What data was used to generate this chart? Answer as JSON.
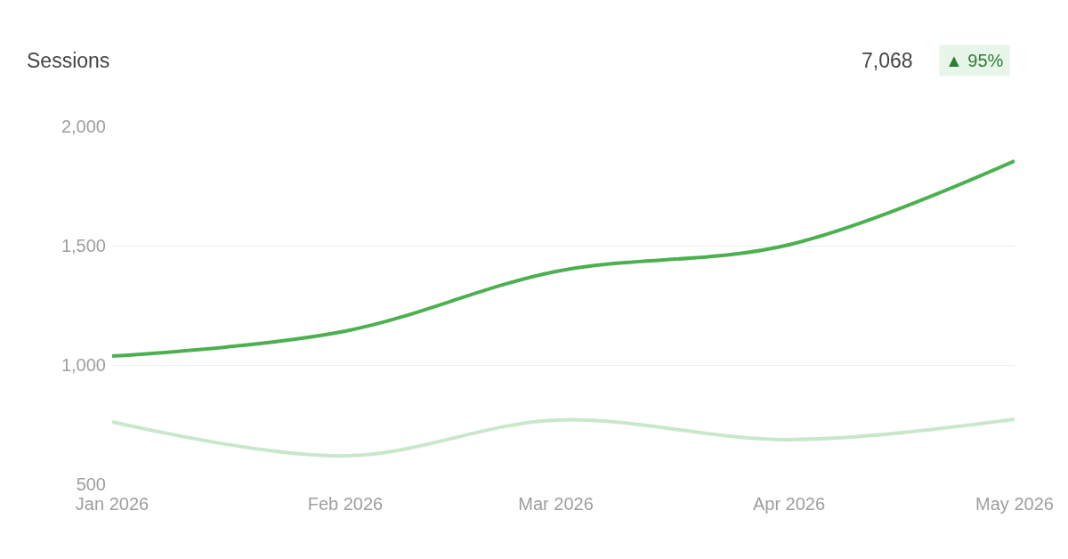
{
  "chart_data": {
    "type": "line",
    "title": "Sessions",
    "annotations": [
      "7,068",
      "▲ 95%"
    ],
    "x": [
      "2026-01-01",
      "2026-02-01",
      "2026-03-01",
      "2026-04-01",
      "2026-05-01"
    ],
    "series": [
      {
        "color": "#4cb050",
        "values": [
          1037,
          1142,
          1392,
          1504,
          1855
        ]
      },
      {
        "color": "#c9e8cb",
        "values": [
          761,
          619,
          769,
          687,
          772
        ]
      }
    ],
    "xlim": [
      "2026-01-01",
      "2026-05-01"
    ],
    "xticks": [
      {
        "value": "2026-01-01",
        "label": "Jan 2026"
      },
      {
        "value": "2026-02-01",
        "label": "Feb 2026"
      },
      {
        "value": "2026-03-01",
        "label": "Mar 2026"
      },
      {
        "value": "2026-04-01",
        "label": "Apr 2026"
      },
      {
        "value": "2026-05-01",
        "label": "May 2026"
      }
    ],
    "ylim": [
      500,
      2000
    ],
    "yticks": [
      {
        "value": 500,
        "label": "500"
      },
      {
        "value": 1000,
        "label": "1,000"
      },
      {
        "value": 1500,
        "label": "1,500"
      },
      {
        "value": 2000,
        "label": "2,000"
      }
    ],
    "grid": "y",
    "marker": "none",
    "line_style": "solid"
  }
}
